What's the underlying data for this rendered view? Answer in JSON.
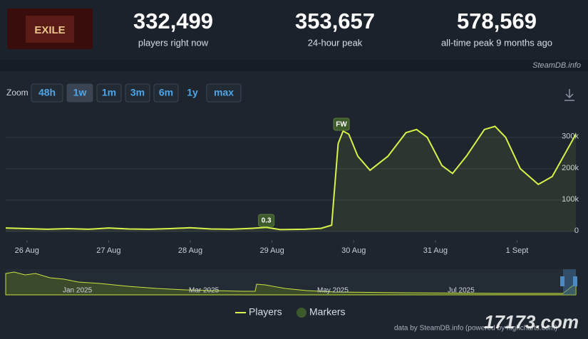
{
  "header": {
    "logo_text": "EXILE",
    "stats": [
      {
        "value": "332,499",
        "label": "players right now"
      },
      {
        "value": "353,657",
        "label": "24-hour peak"
      },
      {
        "value": "578,569",
        "label": "all-time peak 9 months ago"
      }
    ],
    "source": "SteamDB.info"
  },
  "zoom": {
    "label": "Zoom",
    "buttons": [
      "48h",
      "1w",
      "1m",
      "3m",
      "6m",
      "1y",
      "max"
    ],
    "active": "1w",
    "disabled": "1y"
  },
  "chart_data": {
    "type": "line",
    "x": [
      -0.26,
      0,
      0.25,
      0.5,
      0.75,
      1,
      1.25,
      1.5,
      1.75,
      2,
      2.25,
      2.5,
      2.75,
      2.93,
      3.1,
      3.4,
      3.6,
      3.73,
      3.81,
      3.87,
      3.94,
      4.05,
      4.2,
      4.42,
      4.64,
      4.77,
      4.9,
      5.08,
      5.21,
      5.38,
      5.6,
      5.73,
      5.86,
      6.04,
      6.26,
      6.43,
      6.72
    ],
    "series": [
      {
        "name": "Players",
        "color": "#d7f24a",
        "values": [
          11000,
          9000,
          7000,
          9000,
          7000,
          11000,
          8000,
          7000,
          9000,
          12000,
          8000,
          7000,
          10000,
          13000,
          6000,
          7000,
          10000,
          20000,
          280000,
          320000,
          310000,
          240000,
          195000,
          240000,
          315000,
          325000,
          300000,
          210000,
          185000,
          240000,
          325000,
          335000,
          300000,
          200000,
          150000,
          175000,
          310000
        ]
      }
    ],
    "markers": [
      {
        "label": "0.3",
        "x": 2.93
      },
      {
        "label": "FW",
        "x": 3.85
      }
    ],
    "marker_name": "Markers",
    "xlim": [
      -0.26,
      6.72
    ],
    "xticks": [
      {
        "value": 0,
        "label": "26 Aug"
      },
      {
        "value": 1,
        "label": "27 Aug"
      },
      {
        "value": 2,
        "label": "28 Aug"
      },
      {
        "value": 3,
        "label": "29 Aug"
      },
      {
        "value": 4,
        "label": "30 Aug"
      },
      {
        "value": 5,
        "label": "31 Aug"
      },
      {
        "value": 6,
        "label": "1 Sept"
      }
    ],
    "ylim": [
      0,
      370000
    ],
    "yticks": [
      0,
      {
        "value": 100000,
        "label": "100k"
      },
      {
        "value": 200000,
        "label": "200k"
      },
      {
        "value": 300000,
        "label": "300k"
      }
    ],
    "grid": true
  },
  "navigator": {
    "labels": [
      "Jan 2025",
      "Mar 2025",
      "May 2025",
      "Jul 2025"
    ]
  },
  "footer": {
    "credit": "data by SteamDB.info (powered by highcharts.com)",
    "watermark": "17173.com"
  }
}
